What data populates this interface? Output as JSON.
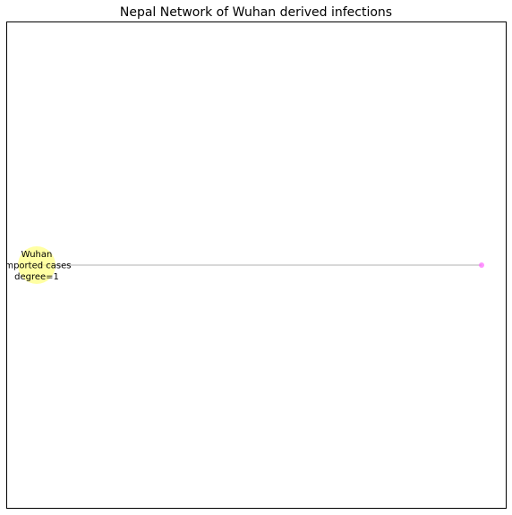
{
  "title": "Nepal Network of Wuhan derived infections",
  "nodes": [
    {
      "id": "wuhan",
      "label_lines": [
        "Wuhan",
        "imported cases",
        "degree=1"
      ],
      "color": "#ffff66"
    },
    {
      "id": "case",
      "label_lines": [],
      "color": "#ff66ff"
    }
  ],
  "edges": [
    {
      "from": "wuhan",
      "to": "case",
      "color": "#cccccc"
    }
  ]
}
